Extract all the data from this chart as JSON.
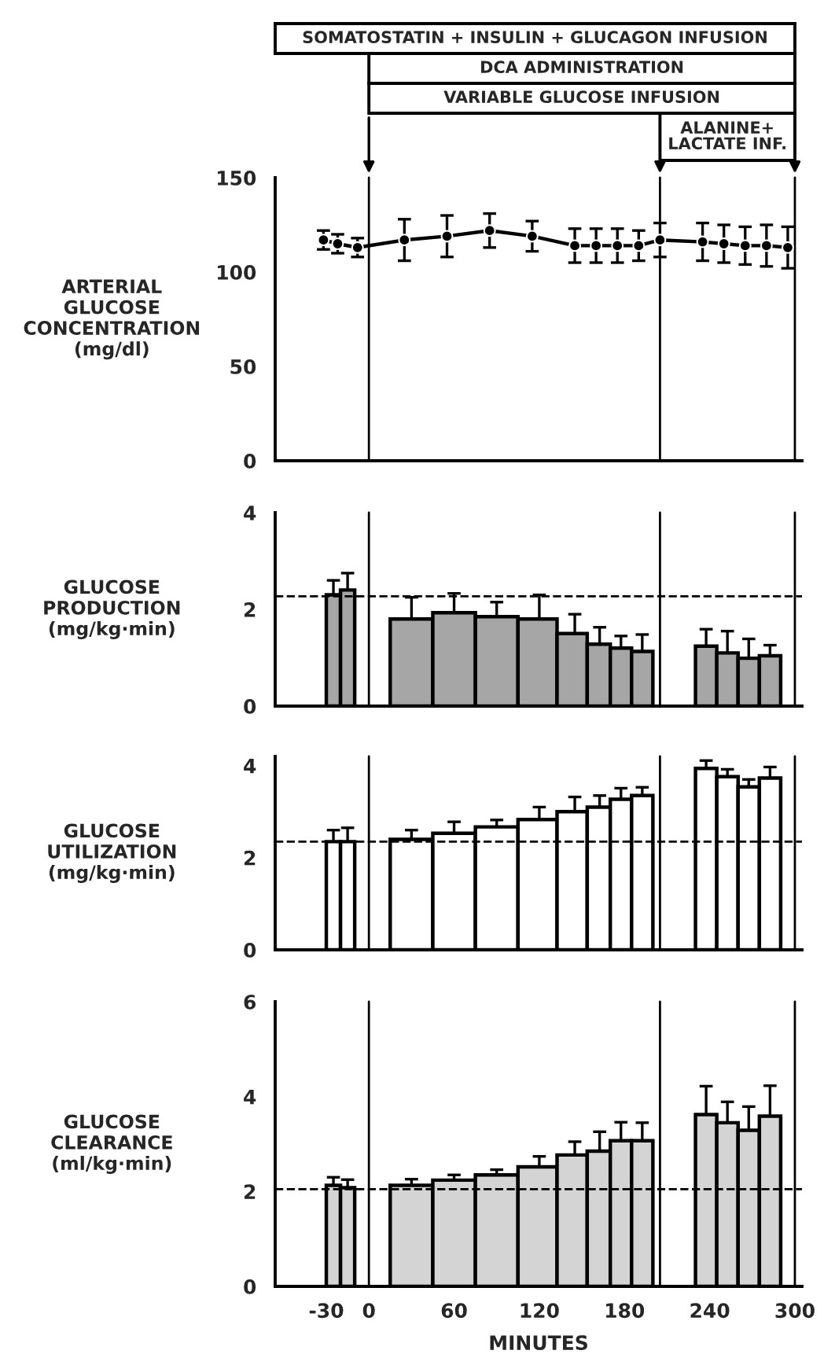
{
  "chart_data": [
    {
      "type": "line",
      "ylabel": "ARTERIAL\nGLUCOSE\nCONCENTRATION\n(mg/dl)",
      "xlim": [
        -66,
        305
      ],
      "ylim": [
        0,
        150
      ],
      "yticks": [
        0,
        50,
        100,
        150
      ],
      "tick_labels": "y",
      "marker": "circle",
      "line_style": "solid",
      "series": [
        {
          "color": "#000000",
          "x": [
            -32,
            -22,
            -8,
            25,
            55,
            85,
            115,
            145,
            160,
            175,
            190,
            205,
            235,
            250,
            265,
            280,
            295
          ],
          "values": [
            117,
            115,
            113,
            117,
            119,
            122,
            119,
            114,
            114,
            114,
            114,
            117,
            116,
            115,
            114,
            114,
            113
          ],
          "errors": [
            5,
            5,
            5,
            11,
            11,
            9,
            8,
            9,
            9,
            9,
            8,
            9,
            10,
            10,
            10,
            11,
            11
          ]
        }
      ],
      "annotations": [
        "SOMATOSTATIN + INSULIN + GLUCAGON INFUSION",
        "DCA ADMINISTRATION",
        "VARIABLE GLUCOSE INFUSION",
        "ALANINE+\nLACTATE INF."
      ],
      "ref_lines": [
        {
          "axis": "x",
          "value": 0,
          "color": "#000000"
        },
        {
          "axis": "x",
          "value": 205,
          "color": "#000000"
        },
        {
          "axis": "x",
          "value": 300,
          "color": "#000000"
        }
      ]
    },
    {
      "type": "bar",
      "ylabel": "GLUCOSE\nPRODUCTION\n(mg/kg·min)",
      "xlim": [
        -66,
        305
      ],
      "ylim": [
        0,
        4
      ],
      "yticks": [
        0,
        2,
        4
      ],
      "tick_labels": "y",
      "series": [
        {
          "color": "#a6a6a6",
          "x": [
            -25,
            -15,
            30,
            60,
            90,
            120,
            145,
            162.5,
            177.5,
            192.5,
            237.5,
            252.5,
            267.5,
            282.5
          ],
          "values": [
            2.3,
            2.4,
            1.8,
            1.93,
            1.85,
            1.8,
            1.5,
            1.28,
            1.2,
            1.13,
            1.24,
            1.1,
            0.99,
            1.04
          ],
          "errors": [
            0.3,
            0.35,
            0.45,
            0.4,
            0.3,
            0.5,
            0.4,
            0.35,
            0.25,
            0.35,
            0.35,
            0.45,
            0.4,
            0.22
          ]
        }
      ],
      "ref_lines": [
        {
          "axis": "y",
          "value": 2.27,
          "color": "#000000",
          "line_style": "dashed"
        },
        {
          "axis": "x",
          "value": 0,
          "color": "#000000"
        },
        {
          "axis": "x",
          "value": 205,
          "color": "#000000"
        },
        {
          "axis": "x",
          "value": 300,
          "color": "#000000"
        }
      ]
    },
    {
      "type": "bar",
      "ylabel": "GLUCOSE\nUTILIZATION\n(mg/kg·min)",
      "xlim": [
        -66,
        305
      ],
      "ylim": [
        0,
        4.2
      ],
      "yticks": [
        0,
        2,
        4
      ],
      "tick_labels": "y",
      "series": [
        {
          "color": "#ffffff",
          "x": [
            -25,
            -15,
            30,
            60,
            90,
            120,
            145,
            162.5,
            177.5,
            192.5,
            237.5,
            252.5,
            267.5,
            282.5
          ],
          "values": [
            2.35,
            2.35,
            2.4,
            2.53,
            2.67,
            2.83,
            3.0,
            3.1,
            3.27,
            3.35,
            3.94,
            3.76,
            3.54,
            3.73
          ],
          "errors": [
            0.25,
            0.3,
            0.2,
            0.25,
            0.15,
            0.27,
            0.32,
            0.25,
            0.24,
            0.18,
            0.17,
            0.16,
            0.16,
            0.24
          ]
        }
      ],
      "ref_lines": [
        {
          "axis": "y",
          "value": 2.35,
          "color": "#000000",
          "line_style": "dashed"
        },
        {
          "axis": "x",
          "value": 0,
          "color": "#000000"
        },
        {
          "axis": "x",
          "value": 205,
          "color": "#000000"
        },
        {
          "axis": "x",
          "value": 300,
          "color": "#000000"
        }
      ]
    },
    {
      "type": "bar",
      "ylabel": "GLUCOSE\nCLEARANCE\n(ml/kg·min)",
      "xlabel": "MINUTES",
      "xlim": [
        -66,
        305
      ],
      "xticks": [
        -30,
        0,
        60,
        120,
        180,
        240,
        300
      ],
      "ylim": [
        0,
        6
      ],
      "yticks": [
        0,
        2,
        4,
        6
      ],
      "series": [
        {
          "color": "#d4d4d4",
          "x": [
            -25,
            -15,
            30,
            60,
            90,
            120,
            145,
            162.5,
            177.5,
            192.5,
            237.5,
            252.5,
            267.5,
            282.5
          ],
          "values": [
            2.13,
            2.08,
            2.13,
            2.24,
            2.35,
            2.52,
            2.77,
            2.85,
            3.07,
            3.07,
            3.62,
            3.45,
            3.29,
            3.59
          ],
          "errors": [
            0.17,
            0.17,
            0.13,
            0.11,
            0.11,
            0.22,
            0.28,
            0.41,
            0.39,
            0.38,
            0.6,
            0.44,
            0.5,
            0.64
          ]
        }
      ],
      "ref_lines": [
        {
          "axis": "y",
          "value": 2.05,
          "color": "#000000",
          "line_style": "dashed"
        },
        {
          "axis": "x",
          "value": 0,
          "color": "#000000"
        },
        {
          "axis": "x",
          "value": 205,
          "color": "#000000"
        },
        {
          "axis": "x",
          "value": 300,
          "color": "#000000"
        }
      ]
    }
  ]
}
